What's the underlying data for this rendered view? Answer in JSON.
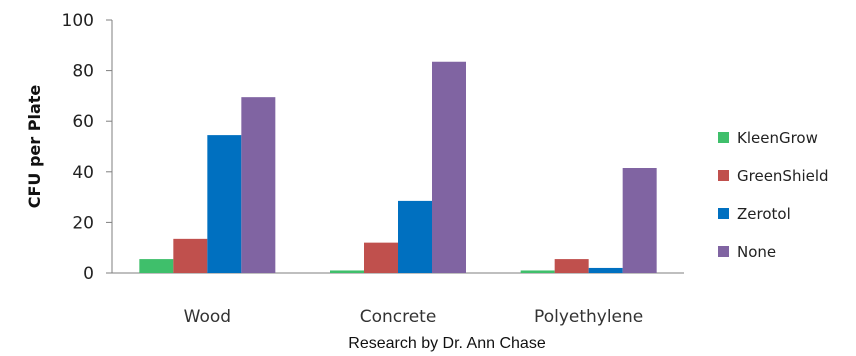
{
  "chart_data": {
    "type": "bar",
    "title": "",
    "xlabel": "",
    "ylabel": "CFU per Plate",
    "ylim": [
      0,
      100
    ],
    "yticks": [
      "0",
      "20",
      "40",
      "60",
      "80",
      "100"
    ],
    "grid": false,
    "legend": "right",
    "categories": [
      "Wood",
      "Concrete",
      "Polyethylene"
    ],
    "series": [
      {
        "name": "KleenGrow",
        "color": "#3fbf6b",
        "values": [
          5.5,
          1,
          1
        ]
      },
      {
        "name": "GreenShield",
        "color": "#c0504d",
        "values": [
          13.5,
          12,
          5.5
        ]
      },
      {
        "name": "Zerotol",
        "color": "#0070c0",
        "values": [
          54.5,
          28.5,
          2
        ]
      },
      {
        "name": "None",
        "color": "#8064a2",
        "values": [
          69.5,
          83.5,
          41.5
        ]
      }
    ]
  },
  "footer": {
    "credit": "Research by Dr. Ann Chase"
  }
}
